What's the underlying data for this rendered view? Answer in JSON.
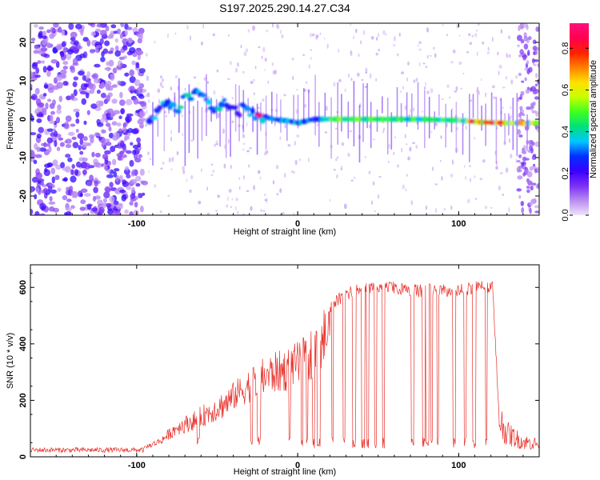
{
  "page_title": "S197.2025.290.14.27.C34",
  "chart_data": [
    {
      "type": "heatmap",
      "title": "S197.2025.290.14.27.C34",
      "xlabel": "Height of straight line (km)",
      "ylabel": "Frequency (Hz)",
      "xlim": [
        -166,
        150
      ],
      "ylim": [
        -25,
        25
      ],
      "x_ticks": [
        -100,
        0,
        100
      ],
      "x_tick_labels": [
        "-100",
        "0",
        "100"
      ],
      "y_ticks": [
        -20,
        -10,
        0,
        10,
        20
      ],
      "y_tick_labels": [
        "-20",
        "-10",
        "0",
        "10",
        "20"
      ],
      "ridge_points": [
        {
          "x": -92,
          "y": 0
        },
        {
          "x": -86,
          "y": 3
        },
        {
          "x": -80,
          "y": 4
        },
        {
          "x": -74,
          "y": 3
        },
        {
          "x": -70,
          "y": 5
        },
        {
          "x": -62,
          "y": 6
        },
        {
          "x": -57,
          "y": 5
        },
        {
          "x": -53,
          "y": 3
        },
        {
          "x": -48,
          "y": 4
        },
        {
          "x": -40,
          "y": 3
        },
        {
          "x": -32,
          "y": 2
        },
        {
          "x": -24,
          "y": 1
        },
        {
          "x": -15,
          "y": 0
        },
        {
          "x": -5,
          "y": -0.5
        },
        {
          "x": 0,
          "y": -1
        },
        {
          "x": 10,
          "y": 0
        },
        {
          "x": 25,
          "y": 0
        },
        {
          "x": 50,
          "y": 0
        },
        {
          "x": 75,
          "y": 0
        },
        {
          "x": 100,
          "y": -0.3
        },
        {
          "x": 115,
          "y": -0.8
        },
        {
          "x": 130,
          "y": -1
        },
        {
          "x": 148,
          "y": -1
        }
      ],
      "colorbar": {
        "label": "Normalized spectral amplitude",
        "range": [
          0,
          0.92
        ],
        "ticks": [
          0.0,
          0.2,
          0.4,
          0.6,
          0.8
        ],
        "tick_labels": [
          "0.0",
          "0.2",
          "0.4",
          "0.6",
          "0.8"
        ],
        "colors": [
          "#f0e4fa",
          "#b98cf0",
          "#7b2ff5",
          "#3a00ff",
          "#0030ff",
          "#00c8ff",
          "#00e07a",
          "#40ff20",
          "#c8ff00",
          "#ffe000",
          "#ff8000",
          "#ff2000",
          "#ff0050",
          "#ff1080"
        ]
      }
    },
    {
      "type": "line",
      "xlabel": "Height of straight line (km)",
      "ylabel": "SNR (10 * v/v)",
      "xlim": [
        -166,
        150
      ],
      "ylim": [
        0,
        680
      ],
      "x_ticks": [
        -100,
        0,
        100
      ],
      "x_tick_labels": [
        "-100",
        "0",
        "100"
      ],
      "y_ticks": [
        0,
        200,
        400,
        600
      ],
      "y_tick_labels": [
        "0",
        "200",
        "400",
        "600"
      ],
      "color": "#e8322c",
      "envelope": [
        {
          "x": -166,
          "y": 25
        },
        {
          "x": -140,
          "y": 25
        },
        {
          "x": -110,
          "y": 28
        },
        {
          "x": -95,
          "y": 40
        },
        {
          "x": -85,
          "y": 70
        },
        {
          "x": -75,
          "y": 130
        },
        {
          "x": -65,
          "y": 160
        },
        {
          "x": -55,
          "y": 200
        },
        {
          "x": -45,
          "y": 240
        },
        {
          "x": -35,
          "y": 290
        },
        {
          "x": -25,
          "y": 340
        },
        {
          "x": -15,
          "y": 370
        },
        {
          "x": -5,
          "y": 390
        },
        {
          "x": 5,
          "y": 430
        },
        {
          "x": 15,
          "y": 530
        },
        {
          "x": 25,
          "y": 580
        },
        {
          "x": 35,
          "y": 610
        },
        {
          "x": 45,
          "y": 620
        },
        {
          "x": 55,
          "y": 630
        },
        {
          "x": 65,
          "y": 615
        },
        {
          "x": 75,
          "y": 610
        },
        {
          "x": 85,
          "y": 615
        },
        {
          "x": 95,
          "y": 610
        },
        {
          "x": 105,
          "y": 615
        },
        {
          "x": 115,
          "y": 630
        },
        {
          "x": 121,
          "y": 620
        },
        {
          "x": 125,
          "y": 180
        },
        {
          "x": 130,
          "y": 110
        },
        {
          "x": 140,
          "y": 70
        },
        {
          "x": 150,
          "y": 60
        }
      ]
    }
  ]
}
